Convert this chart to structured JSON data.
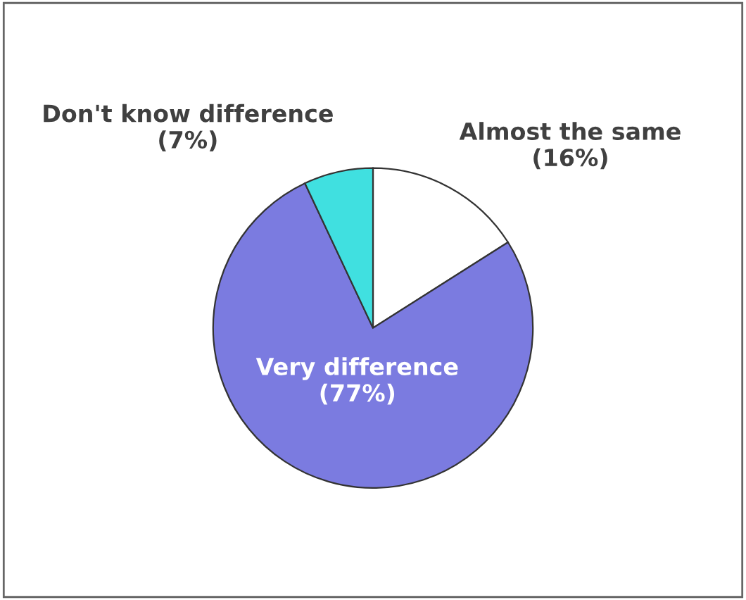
{
  "chart_data": {
    "type": "pie",
    "categories": [
      "Almost the same",
      "Very difference",
      "Don't know difference"
    ],
    "values": [
      16,
      77,
      7
    ],
    "colors": [
      "#ffffff",
      "#7b7be0",
      "#40e0e0"
    ],
    "value_labels": [
      "(16%)",
      "(77%)",
      "(7%)"
    ],
    "legend": false
  }
}
